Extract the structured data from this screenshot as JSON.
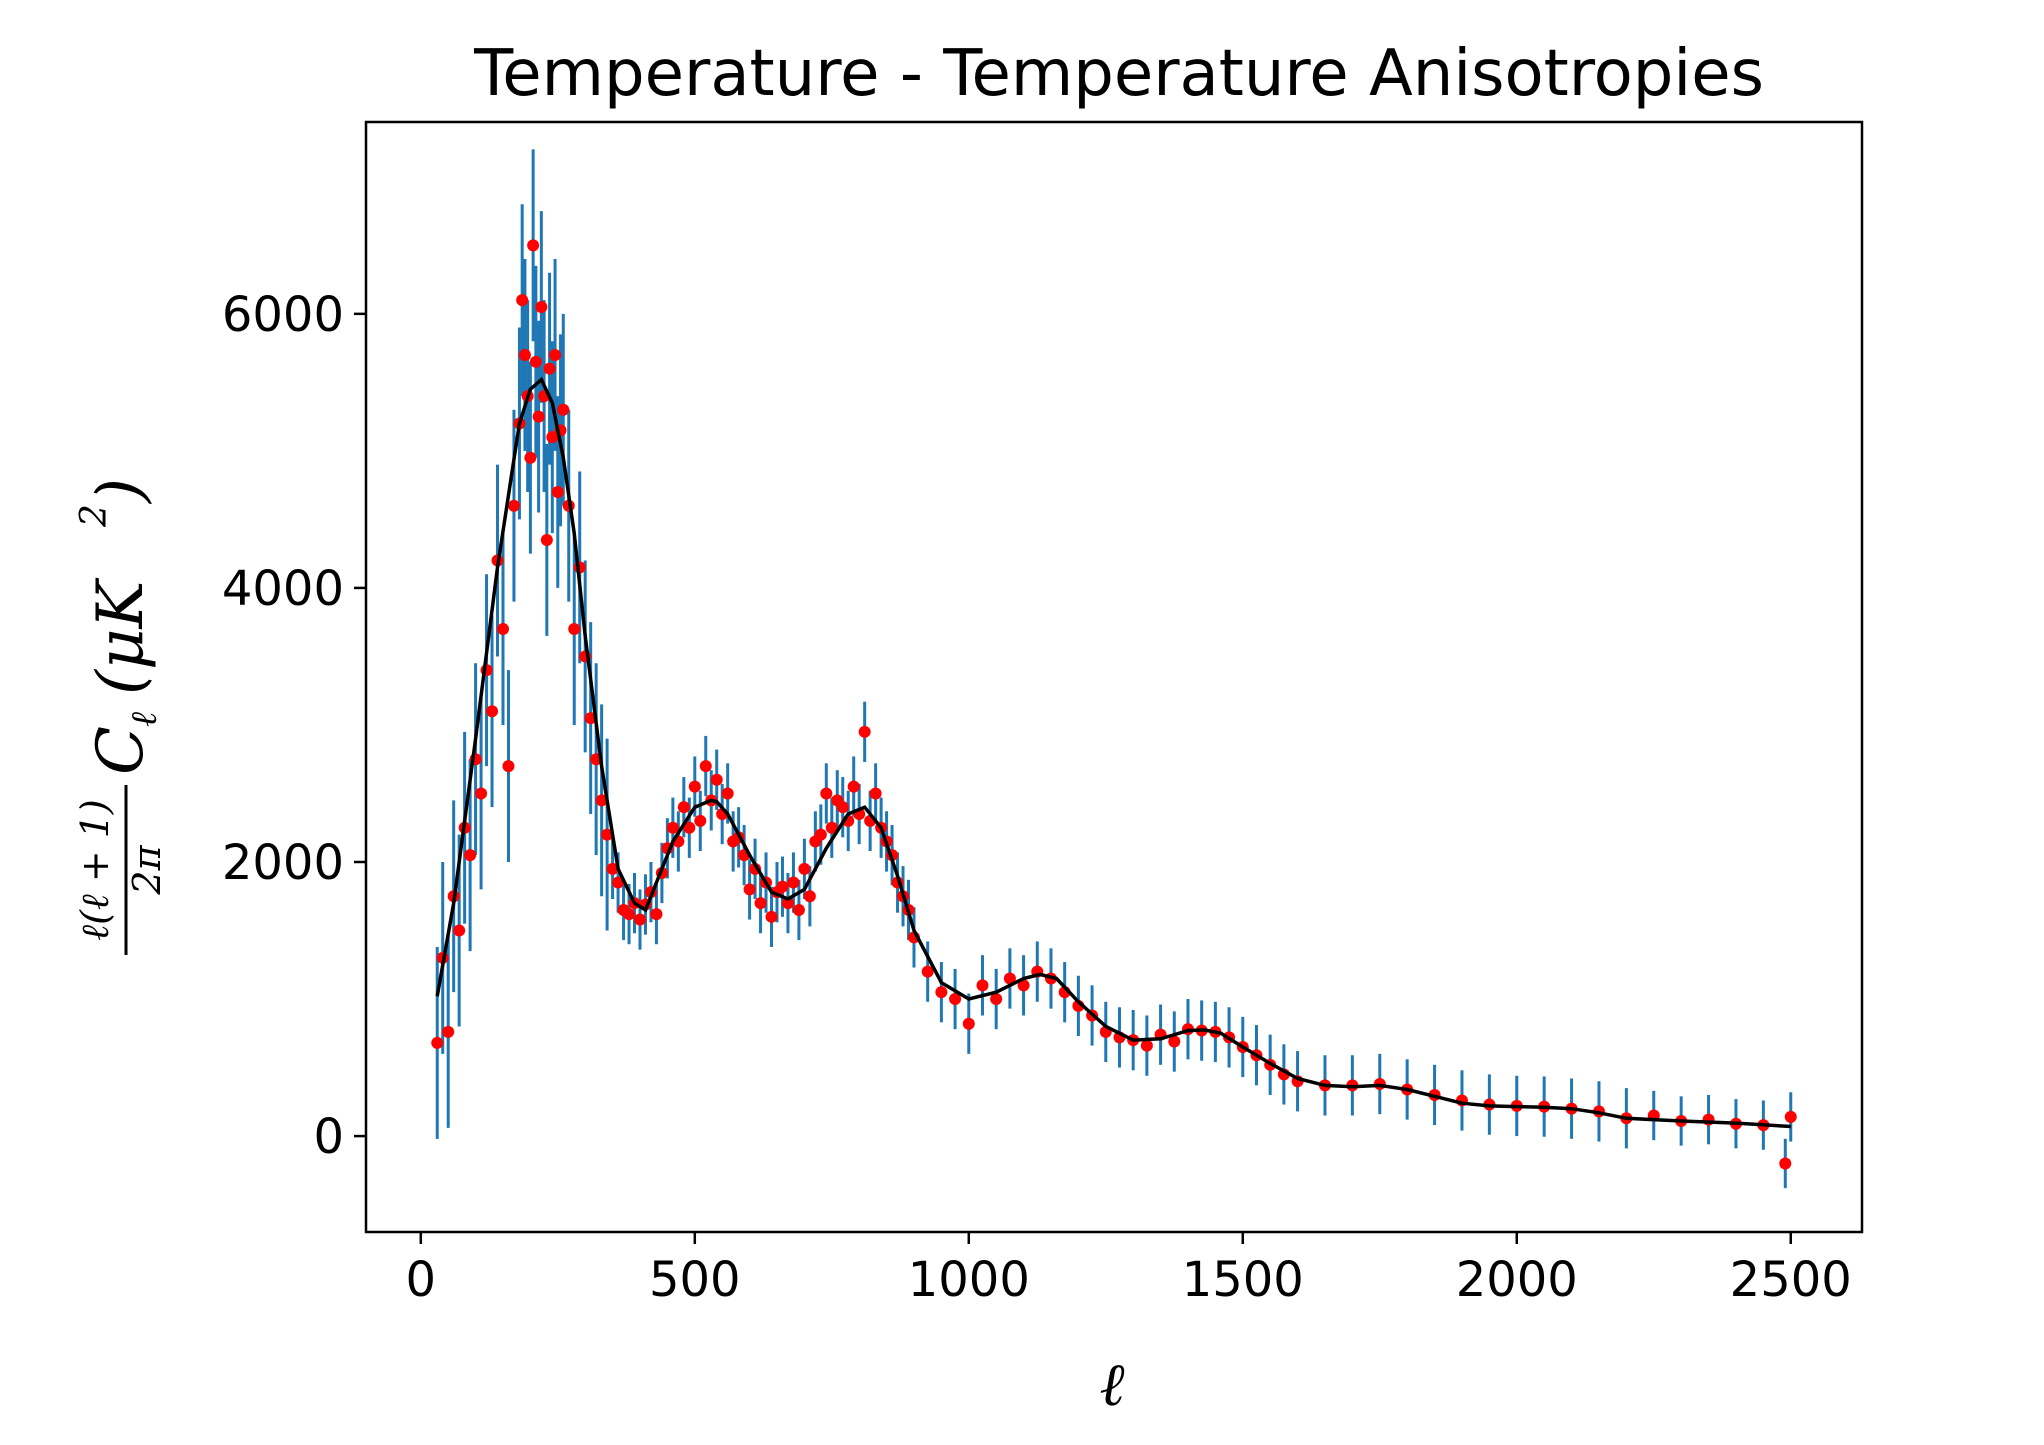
{
  "chart_data": {
    "type": "scatter",
    "title": "Temperature - Temperature Anisotropies",
    "xlabel": "ℓ",
    "ylabel": {
      "frac_numerator": "ℓ(ℓ + 1)",
      "frac_denominator": "2π",
      "symbol": "C",
      "symbol_sub": "ℓ",
      "unit_open": "(μK",
      "unit_sup": "2",
      "unit_close": ")"
    },
    "xlim": [
      -100,
      2630
    ],
    "ylim": [
      -700,
      7400
    ],
    "xticks": [
      0,
      500,
      1000,
      1500,
      2000,
      2500
    ],
    "xtick_labels": [
      "0",
      "500",
      "1000",
      "1500",
      "2000",
      "2500"
    ],
    "yticks": [
      0,
      2000,
      4000,
      6000
    ],
    "ytick_labels": [
      "0",
      "2000",
      "4000",
      "6000"
    ],
    "grid": false,
    "colors": {
      "data_points": "#ff0000",
      "error_bars": "#1f77b4",
      "model_line": "#000000"
    },
    "series": [
      {
        "kind": "model-curve",
        "x": [
          30,
          60,
          100,
          140,
          180,
          200,
          220,
          240,
          260,
          280,
          300,
          330,
          360,
          390,
          410,
          430,
          460,
          500,
          530,
          540,
          560,
          600,
          640,
          670,
          700,
          740,
          780,
          810,
          840,
          870,
          900,
          950,
          1000,
          1050,
          1100,
          1130,
          1160,
          1200,
          1250,
          1300,
          1350,
          1400,
          1430,
          1460,
          1500,
          1550,
          1600,
          1650,
          1700,
          1750,
          1800,
          1850,
          1900,
          1950,
          2000,
          2050,
          2100,
          2150,
          2200,
          2300,
          2400,
          2500
        ],
        "y": [
          1020,
          1700,
          2900,
          4150,
          5200,
          5450,
          5520,
          5350,
          4950,
          4400,
          3650,
          2700,
          1950,
          1700,
          1650,
          1850,
          2150,
          2400,
          2450,
          2440,
          2350,
          2050,
          1780,
          1730,
          1800,
          2100,
          2350,
          2400,
          2250,
          1900,
          1500,
          1120,
          1000,
          1050,
          1150,
          1180,
          1150,
          980,
          800,
          700,
          710,
          770,
          775,
          750,
          650,
          530,
          420,
          370,
          360,
          370,
          340,
          290,
          240,
          220,
          215,
          210,
          200,
          170,
          130,
          110,
          95,
          70
        ]
      },
      {
        "kind": "measurements",
        "x": [
          30,
          40,
          50,
          60,
          70,
          80,
          90,
          100,
          110,
          120,
          130,
          140,
          150,
          160,
          170,
          180,
          185,
          190,
          195,
          200,
          205,
          210,
          215,
          220,
          225,
          230,
          235,
          240,
          245,
          250,
          255,
          260,
          270,
          280,
          290,
          300,
          310,
          320,
          330,
          340,
          350,
          360,
          370,
          380,
          390,
          400,
          410,
          420,
          430,
          440,
          450,
          460,
          470,
          480,
          490,
          500,
          510,
          520,
          530,
          540,
          550,
          560,
          570,
          580,
          590,
          600,
          610,
          620,
          630,
          640,
          650,
          660,
          670,
          680,
          690,
          700,
          710,
          720,
          730,
          740,
          750,
          760,
          770,
          780,
          790,
          800,
          810,
          820,
          830,
          840,
          850,
          860,
          870,
          880,
          890,
          900,
          925,
          950,
          975,
          1000,
          1025,
          1050,
          1075,
          1100,
          1125,
          1150,
          1175,
          1200,
          1225,
          1250,
          1275,
          1300,
          1325,
          1350,
          1375,
          1400,
          1425,
          1450,
          1475,
          1500,
          1525,
          1550,
          1575,
          1600,
          1650,
          1700,
          1750,
          1800,
          1850,
          1900,
          1950,
          2000,
          2050,
          2100,
          2150,
          2200,
          2250,
          2300,
          2350,
          2400,
          2450,
          2490,
          2500
        ],
        "y": [
          680,
          1300,
          760,
          1750,
          1500,
          2250,
          2050,
          2750,
          2500,
          3400,
          3100,
          4200,
          3700,
          2700,
          4600,
          5200,
          6100,
          5700,
          5400,
          4950,
          6500,
          5650,
          5250,
          6050,
          5400,
          4350,
          5600,
          5100,
          5700,
          4700,
          5150,
          5300,
          4600,
          3700,
          4150,
          3500,
          3050,
          2750,
          2450,
          2200,
          1950,
          1850,
          1650,
          1620,
          1700,
          1580,
          1690,
          1780,
          1620,
          1920,
          2100,
          2250,
          2150,
          2400,
          2250,
          2550,
          2300,
          2700,
          2450,
          2600,
          2350,
          2500,
          2150,
          2180,
          2050,
          1800,
          1950,
          1700,
          1850,
          1600,
          1780,
          1820,
          1700,
          1850,
          1650,
          1950,
          1750,
          2150,
          2200,
          2500,
          2250,
          2450,
          2400,
          2300,
          2550,
          2350,
          2950,
          2300,
          2500,
          2250,
          2150,
          2050,
          1850,
          1750,
          1650,
          1450,
          1200,
          1050,
          1000,
          820,
          1100,
          1000,
          1150,
          1100,
          1200,
          1150,
          1050,
          950,
          880,
          760,
          720,
          700,
          660,
          740,
          690,
          780,
          770,
          760,
          720,
          650,
          590,
          520,
          450,
          400,
          370,
          370,
          380,
          340,
          300,
          260,
          230,
          220,
          215,
          200,
          180,
          130,
          150,
          110,
          120,
          90,
          80,
          -200,
          140
        ]
      }
    ]
  }
}
